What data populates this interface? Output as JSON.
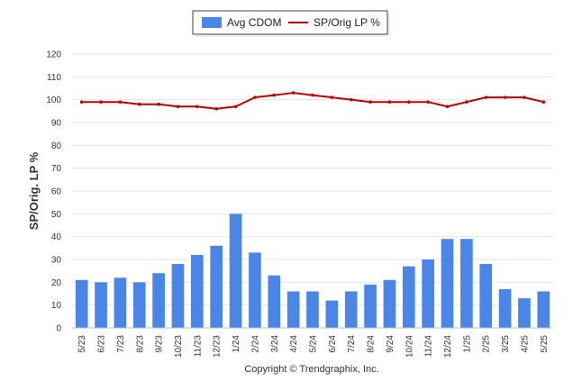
{
  "chart_data": {
    "type": "bar",
    "categories": [
      "5/23",
      "6/23",
      "7/23",
      "8/23",
      "9/23",
      "10/23",
      "11/23",
      "12/23",
      "1/24",
      "2/24",
      "3/24",
      "4/24",
      "5/24",
      "6/24",
      "7/24",
      "8/24",
      "9/24",
      "10/24",
      "11/24",
      "12/24",
      "1/25",
      "2/25",
      "3/25",
      "4/25",
      "5/25"
    ],
    "series": [
      {
        "name": "Avg CDOM",
        "type": "bar",
        "color": "#4a86e8",
        "values": [
          21,
          20,
          22,
          20,
          24,
          28,
          32,
          36,
          50,
          33,
          23,
          16,
          16,
          12,
          16,
          19,
          21,
          27,
          30,
          39,
          39,
          28,
          17,
          13,
          16
        ]
      },
      {
        "name": "SP/Orig LP %",
        "type": "line",
        "color": "#c00000",
        "values": [
          99,
          99,
          99,
          98,
          98,
          97,
          97,
          96,
          97,
          101,
          102,
          103,
          102,
          101,
          100,
          99,
          99,
          99,
          99,
          97,
          99,
          101,
          101,
          101,
          99
        ]
      }
    ],
    "ylabel": "SP/Orig. LP %",
    "ylim": [
      0,
      120
    ],
    "yticks": [
      0,
      10,
      20,
      30,
      40,
      50,
      60,
      70,
      80,
      90,
      100,
      110,
      120
    ],
    "grid": true,
    "legend_position": "top-center",
    "xtick_rotation": "vertical"
  },
  "credit": "Copyright © Trendgraphix, Inc."
}
